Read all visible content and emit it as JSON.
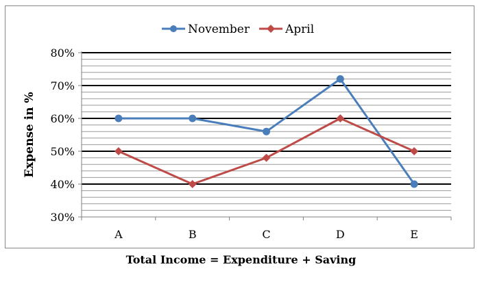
{
  "chart_data": {
    "type": "line",
    "categories": [
      "A",
      "B",
      "C",
      "D",
      "E"
    ],
    "series": [
      {
        "name": "November",
        "values": [
          60,
          60,
          56,
          72,
          40
        ],
        "color": "#4a7ebb",
        "marker": "circle"
      },
      {
        "name": "April",
        "values": [
          50,
          40,
          48,
          60,
          50
        ],
        "color": "#be4b48",
        "marker": "diamond"
      }
    ],
    "ylabel": "Expense in %",
    "xlabel": "",
    "ylim": [
      30,
      80
    ],
    "yticks": [
      "30%",
      "40%",
      "50%",
      "60%",
      "70%",
      "80%"
    ],
    "ytick_values": [
      30,
      40,
      50,
      60,
      70,
      80
    ],
    "minor_grid_step": 2,
    "grid": true,
    "legend_position": "top-center"
  },
  "caption": "Total Income = Expenditure + Saving"
}
